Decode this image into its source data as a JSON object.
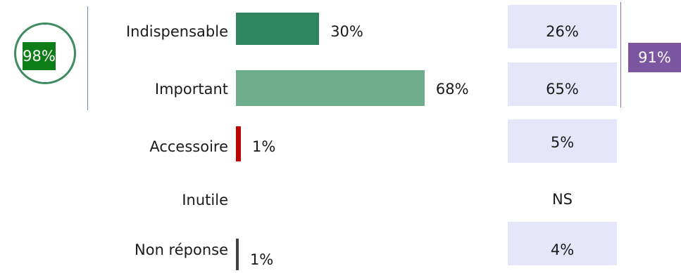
{
  "chart_data": {
    "type": "bar",
    "orientation": "horizontal",
    "xlim": [
      0,
      100
    ],
    "categories": [
      "Indispensable",
      "Important",
      "Accessoire",
      "Inutile",
      "Non réponse"
    ],
    "series": [
      {
        "values": [
          30,
          68,
          1,
          null,
          1
        ],
        "labels": [
          "30%",
          "68%",
          "1%",
          "",
          "1%"
        ],
        "colors": [
          "#2e8560",
          "#6eae8f",
          "#c00000",
          "#ffffff",
          "#404040"
        ]
      }
    ],
    "comparison": {
      "labels": [
        "26%",
        "65%",
        "5%",
        "NS",
        "4%"
      ],
      "shaded": [
        true,
        true,
        true,
        false,
        true
      ],
      "shade_color": "#e6e6fa"
    },
    "summaries": {
      "left": "98%",
      "right": "91%"
    }
  }
}
